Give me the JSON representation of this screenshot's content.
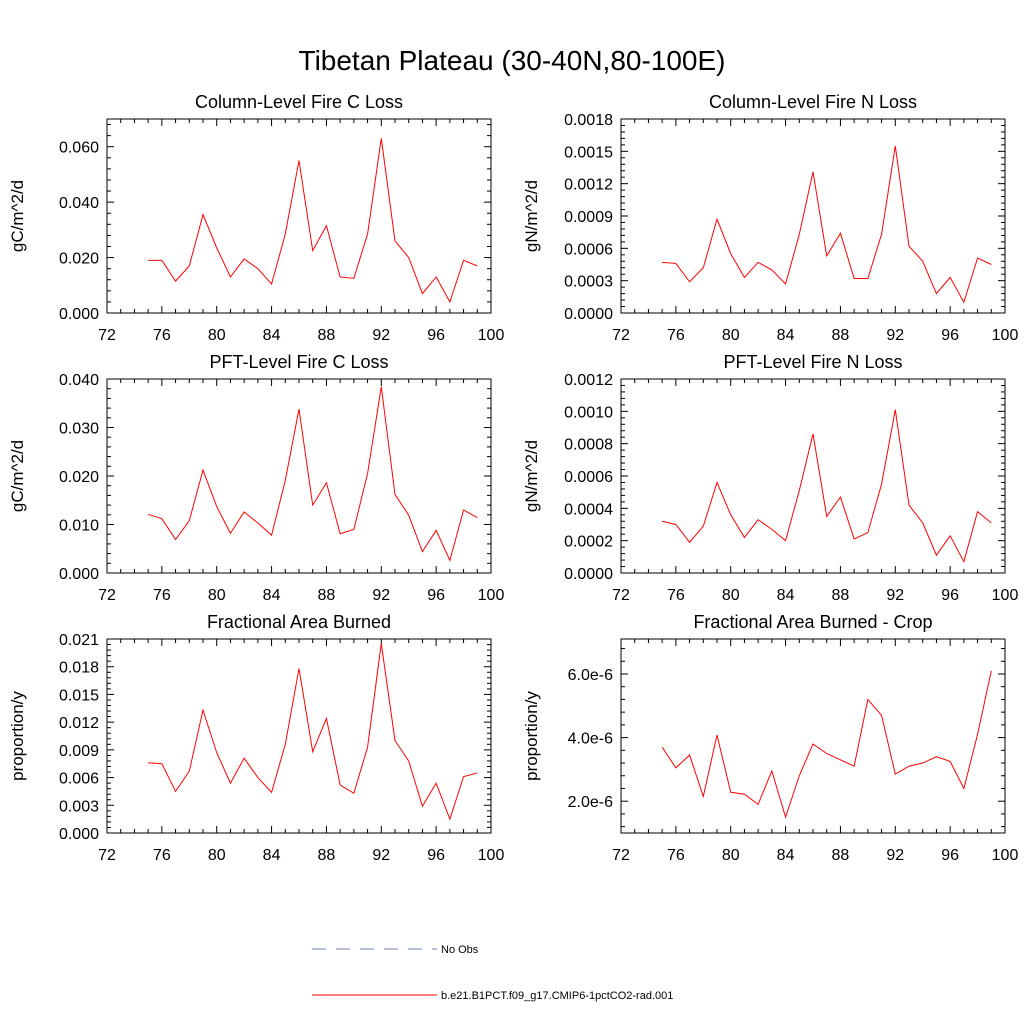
{
  "title": "Tibetan Plateau (30-40N,80-100E)",
  "colors": {
    "series": "#ff0000",
    "obs": "#6f7fb0",
    "axis": "#000000"
  },
  "legend": [
    {
      "label": "No Obs",
      "style": "dashed",
      "color": "#6f7fb0"
    },
    {
      "label": "b.e21.B1PCT.f09_g17.CMIP6-1pctCO2-rad.001",
      "style": "solid",
      "color": "#ff0000"
    }
  ],
  "chart_data": [
    {
      "type": "line",
      "title": "Column-Level Fire C Loss",
      "xlabel": "",
      "ylabel": "gC/m^2/d",
      "xlim": [
        72,
        100
      ],
      "ylim": [
        0,
        0.07
      ],
      "xticks": [
        "72",
        "76",
        "80",
        "84",
        "88",
        "92",
        "96",
        "100"
      ],
      "yticks": [
        "0.000",
        "0.020",
        "0.040",
        "0.060"
      ],
      "series": [
        {
          "x": [
            75,
            76,
            77,
            78,
            79,
            80,
            81,
            82,
            83,
            84,
            85,
            86,
            87,
            88,
            89,
            90,
            91,
            92,
            93,
            94,
            95,
            96,
            97,
            98,
            99
          ],
          "values": [
            0.019,
            0.019,
            0.0115,
            0.017,
            0.0355,
            0.0235,
            0.013,
            0.0195,
            0.016,
            0.0105,
            0.0285,
            0.055,
            0.0225,
            0.0315,
            0.013,
            0.0125,
            0.0285,
            0.063,
            0.026,
            0.02,
            0.007,
            0.013,
            0.004,
            0.019,
            0.017
          ]
        }
      ]
    },
    {
      "type": "line",
      "title": "Column-Level Fire N Loss",
      "xlabel": "",
      "ylabel": "gN/m^2/d",
      "xlim": [
        72,
        100
      ],
      "ylim": [
        0,
        0.0018
      ],
      "xticks": [
        "72",
        "76",
        "80",
        "84",
        "88",
        "92",
        "96",
        "100"
      ],
      "yticks": [
        "0.0000",
        "0.0003",
        "0.0006",
        "0.0009",
        "0.0012",
        "0.0015",
        "0.0018"
      ],
      "series": [
        {
          "x": [
            75,
            76,
            77,
            78,
            79,
            80,
            81,
            82,
            83,
            84,
            85,
            86,
            87,
            88,
            89,
            90,
            91,
            92,
            93,
            94,
            95,
            96,
            97,
            98,
            99
          ],
          "values": [
            0.00047,
            0.00046,
            0.00029,
            0.00042,
            0.00087,
            0.00055,
            0.00033,
            0.00047,
            0.0004,
            0.00027,
            0.00073,
            0.00131,
            0.00053,
            0.00074,
            0.00032,
            0.00032,
            0.00073,
            0.00155,
            0.00062,
            0.00048,
            0.00018,
            0.00033,
            0.0001,
            0.00051,
            0.00045
          ]
        }
      ]
    },
    {
      "type": "line",
      "title": "PFT-Level Fire C Loss",
      "xlabel": "",
      "ylabel": "gC/m^2/d",
      "xlim": [
        72,
        100
      ],
      "ylim": [
        0,
        0.04
      ],
      "xticks": [
        "72",
        "76",
        "80",
        "84",
        "88",
        "92",
        "96",
        "100"
      ],
      "yticks": [
        "0.000",
        "0.010",
        "0.020",
        "0.030",
        "0.040"
      ],
      "series": [
        {
          "x": [
            75,
            76,
            77,
            78,
            79,
            80,
            81,
            82,
            83,
            84,
            85,
            86,
            87,
            88,
            89,
            90,
            91,
            92,
            93,
            94,
            95,
            96,
            97,
            98,
            99
          ],
          "values": [
            0.0121,
            0.0112,
            0.0069,
            0.0108,
            0.0212,
            0.0137,
            0.0082,
            0.0126,
            0.0103,
            0.0078,
            0.0191,
            0.0338,
            0.014,
            0.0186,
            0.0081,
            0.009,
            0.0205,
            0.0384,
            0.0162,
            0.0119,
            0.0044,
            0.0088,
            0.0026,
            0.013,
            0.0114
          ]
        }
      ]
    },
    {
      "type": "line",
      "title": "PFT-Level Fire N Loss",
      "xlabel": "",
      "ylabel": "gN/m^2/d",
      "xlim": [
        72,
        100
      ],
      "ylim": [
        0,
        0.0012
      ],
      "xticks": [
        "72",
        "76",
        "80",
        "84",
        "88",
        "92",
        "96",
        "100"
      ],
      "yticks": [
        "0.0000",
        "0.0002",
        "0.0004",
        "0.0006",
        "0.0008",
        "0.0010",
        "0.0012"
      ],
      "series": [
        {
          "x": [
            75,
            76,
            77,
            78,
            79,
            80,
            81,
            82,
            83,
            84,
            85,
            86,
            87,
            88,
            89,
            90,
            91,
            92,
            93,
            94,
            95,
            96,
            97,
            98,
            99
          ],
          "values": [
            0.00032,
            0.0003,
            0.00019,
            0.00029,
            0.00056,
            0.00036,
            0.00022,
            0.00033,
            0.00027,
            0.0002,
            0.00051,
            0.00086,
            0.00035,
            0.00047,
            0.00021,
            0.00025,
            0.00055,
            0.00101,
            0.00042,
            0.00031,
            0.00011,
            0.00023,
            7e-05,
            0.00038,
            0.00031
          ]
        }
      ]
    },
    {
      "type": "line",
      "title": "Fractional Area Burned",
      "xlabel": "",
      "ylabel": "proportion/y",
      "xlim": [
        72,
        100
      ],
      "ylim": [
        0,
        0.021
      ],
      "xticks": [
        "72",
        "76",
        "80",
        "84",
        "88",
        "92",
        "96",
        "100"
      ],
      "yticks": [
        "0.000",
        "0.003",
        "0.006",
        "0.009",
        "0.012",
        "0.015",
        "0.018",
        "0.021"
      ],
      "series": [
        {
          "x": [
            75,
            76,
            77,
            78,
            79,
            80,
            81,
            82,
            83,
            84,
            85,
            86,
            87,
            88,
            89,
            90,
            91,
            92,
            93,
            94,
            95,
            96,
            97,
            98,
            99
          ],
          "values": [
            0.0076,
            0.0075,
            0.0045,
            0.0067,
            0.0133,
            0.0087,
            0.0054,
            0.0081,
            0.006,
            0.0044,
            0.0096,
            0.0178,
            0.0088,
            0.0124,
            0.0052,
            0.0043,
            0.0093,
            0.0205,
            0.01,
            0.0078,
            0.0029,
            0.0054,
            0.0015,
            0.0061,
            0.0065
          ]
        }
      ]
    },
    {
      "type": "line",
      "title": "Fractional Area Burned - Crop",
      "xlabel": "",
      "ylabel": "proportion/y",
      "xlim": [
        72,
        100
      ],
      "ylim": [
        1e-06,
        7.1e-06
      ],
      "xticks": [
        "72",
        "76",
        "80",
        "84",
        "88",
        "92",
        "96",
        "100"
      ],
      "yticks": [
        "2.0e-6",
        "4.0e-6",
        "6.0e-6"
      ],
      "series": [
        {
          "x": [
            75,
            76,
            77,
            78,
            79,
            80,
            81,
            82,
            83,
            84,
            85,
            86,
            87,
            88,
            89,
            90,
            91,
            92,
            93,
            94,
            95,
            96,
            97,
            98,
            99
          ],
          "values": [
            3.7e-06,
            3.05e-06,
            3.45e-06,
            2.15e-06,
            4.08e-06,
            2.28e-06,
            2.22e-06,
            1.9e-06,
            2.95e-06,
            1.5e-06,
            2.8e-06,
            3.8e-06,
            3.5e-06,
            3.3e-06,
            3.1e-06,
            5.2e-06,
            4.7e-06,
            2.85e-06,
            3.1e-06,
            3.2e-06,
            3.4e-06,
            3.25e-06,
            2.4e-06,
            4.1e-06,
            6.1e-06
          ]
        }
      ]
    }
  ]
}
